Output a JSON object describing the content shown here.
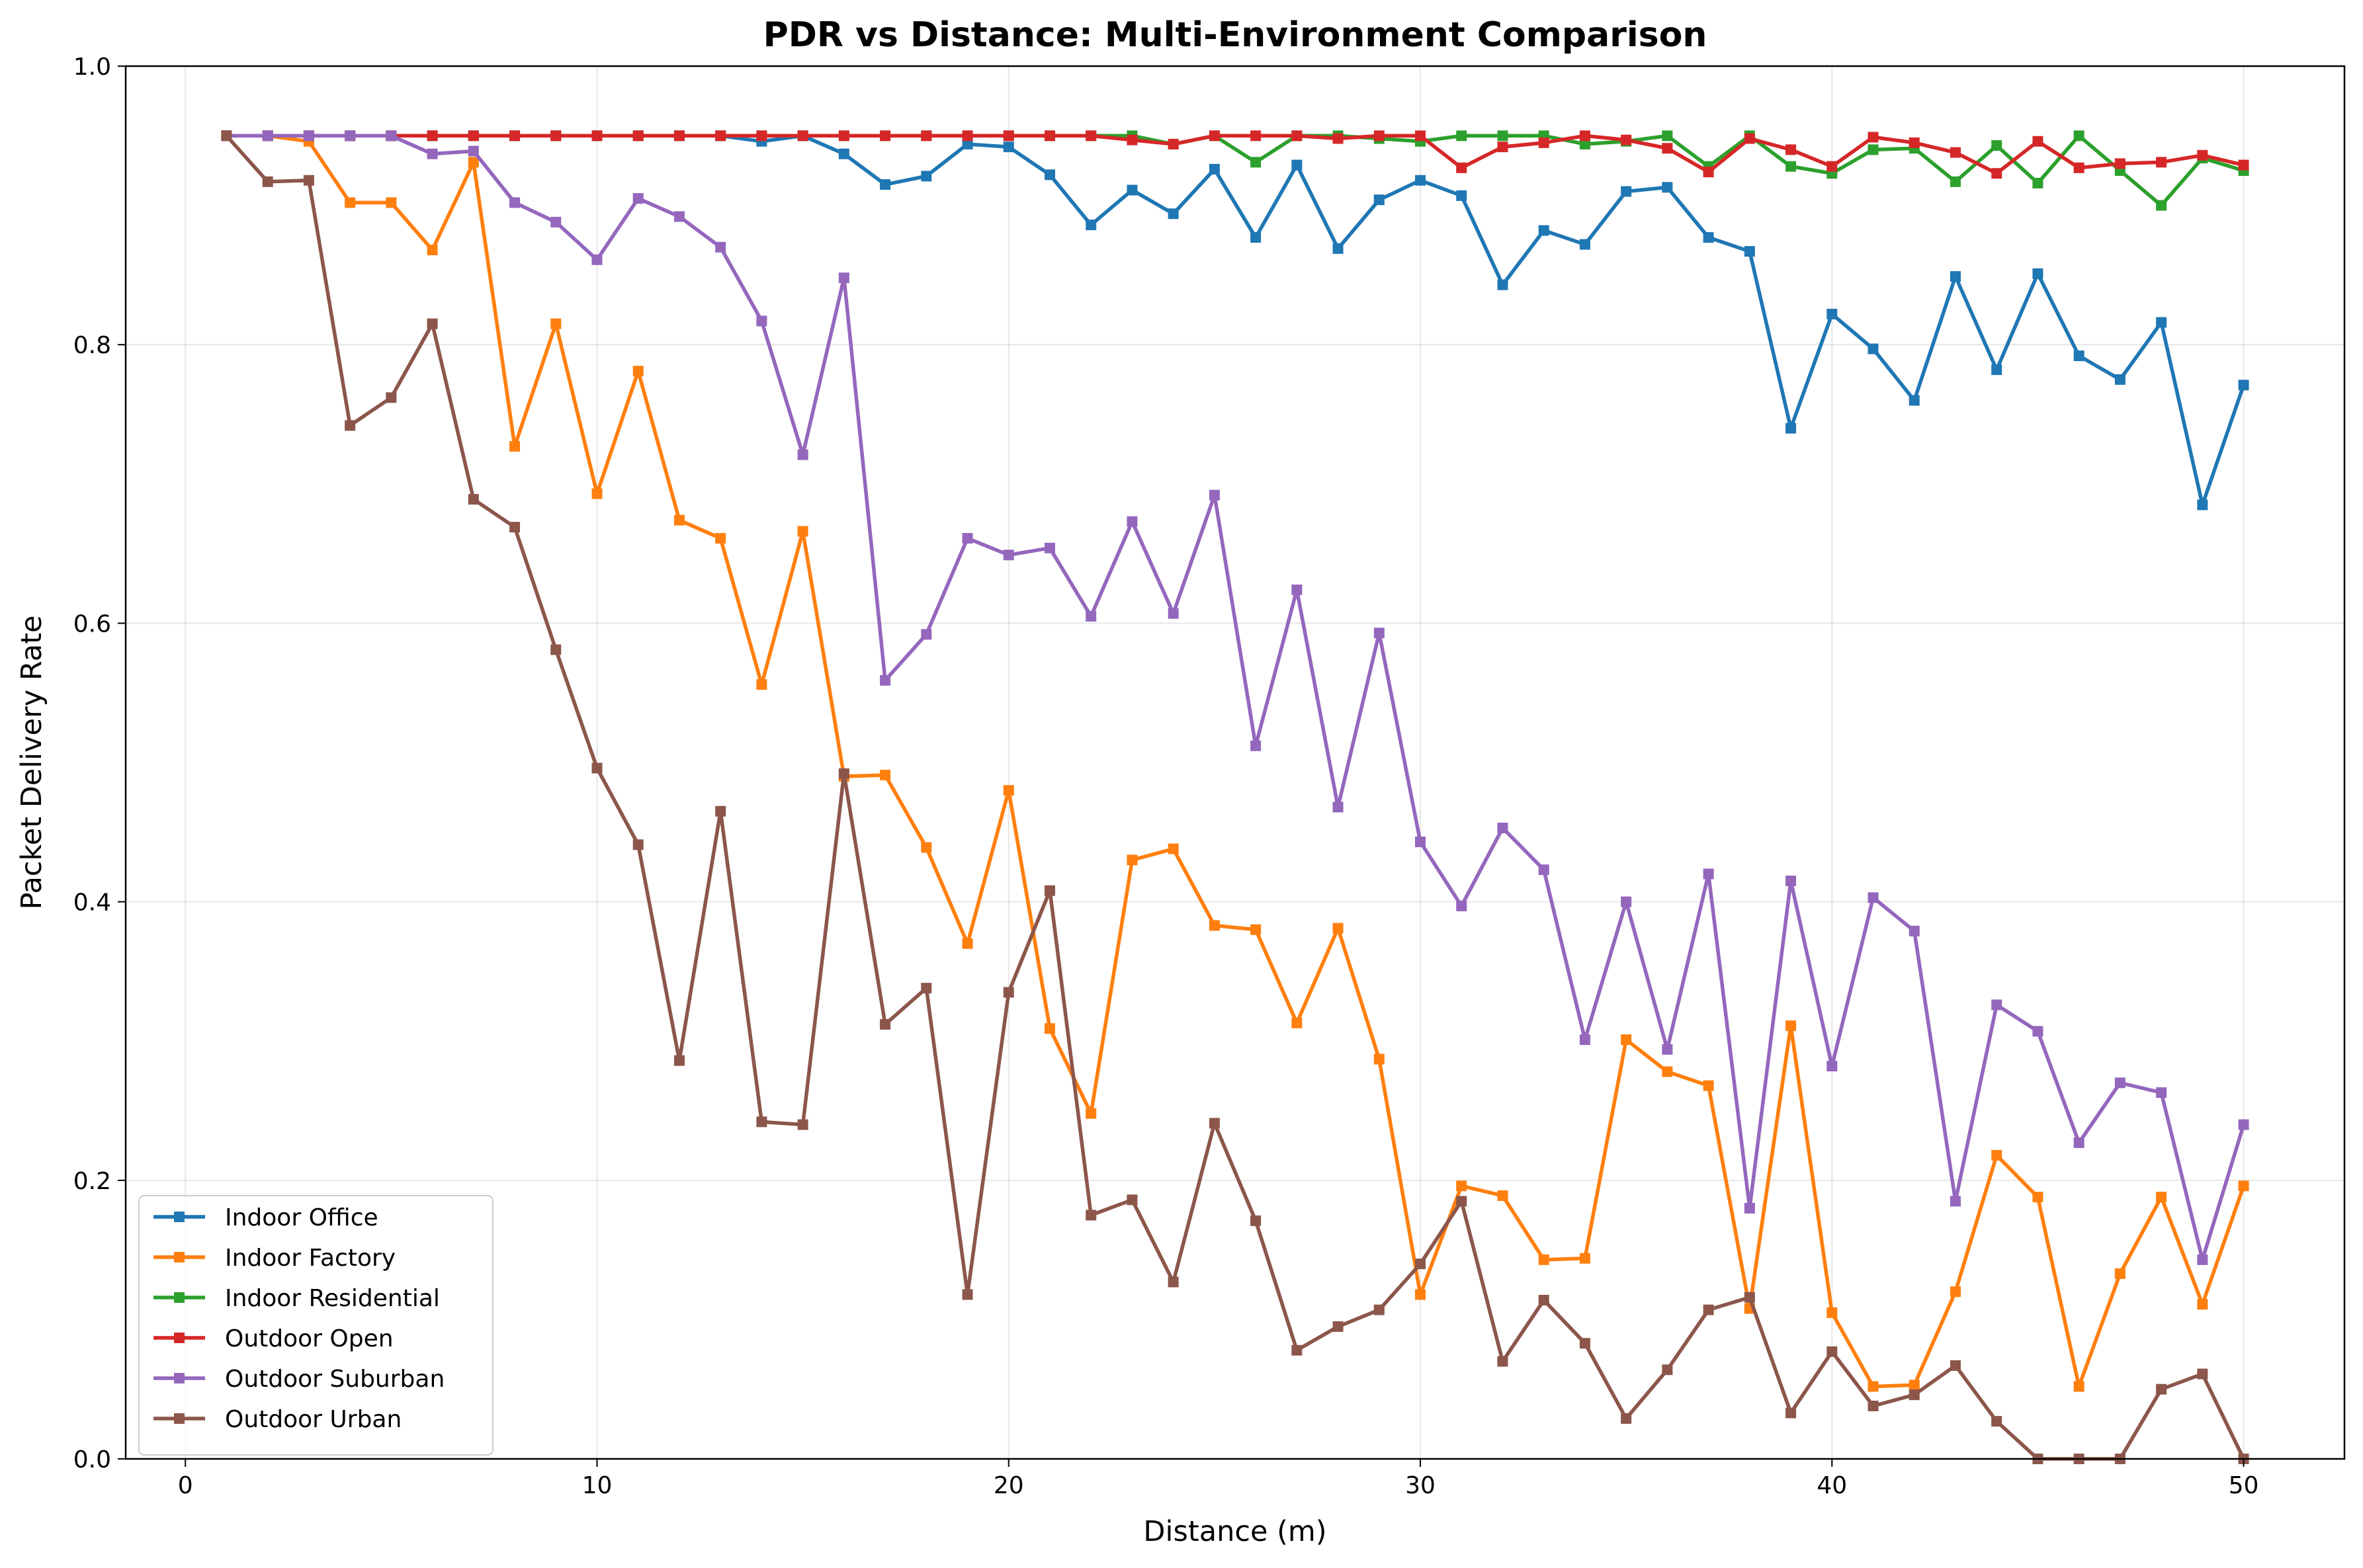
{
  "chart_data": {
    "type": "line",
    "title": "PDR vs Distance: Multi-Environment Comparison",
    "xlabel": "Distance (m)",
    "ylabel": "Packet Delivery Rate",
    "xlim": [
      -1.45,
      52.45
    ],
    "ylim": [
      0,
      1.0
    ],
    "xticks": [
      0,
      10,
      20,
      30,
      40,
      50
    ],
    "yticks": [
      0.0,
      0.2,
      0.4,
      0.6,
      0.8,
      1.0
    ],
    "xtick_labels": [
      "0",
      "10",
      "20",
      "30",
      "40",
      "50"
    ],
    "ytick_labels": [
      "0.0",
      "0.2",
      "0.4",
      "0.6",
      "0.8",
      "1.0"
    ],
    "grid": true,
    "legend_position": "lower-left",
    "marker": "square",
    "x": [
      1,
      2,
      3,
      4,
      5,
      6,
      7,
      8,
      9,
      10,
      11,
      12,
      13,
      14,
      15,
      16,
      17,
      18,
      19,
      20,
      21,
      22,
      23,
      24,
      25,
      26,
      27,
      28,
      29,
      30,
      31,
      32,
      33,
      34,
      35,
      36,
      37,
      38,
      39,
      40,
      41,
      42,
      43,
      44,
      45,
      46,
      47,
      48,
      49,
      50
    ],
    "series": [
      {
        "name": "Indoor Office",
        "color": "#1f77b4",
        "values": [
          0.95,
          0.95,
          0.95,
          0.95,
          0.95,
          0.95,
          0.95,
          0.95,
          0.95,
          0.95,
          0.95,
          0.95,
          0.95,
          0.946,
          0.95,
          0.937,
          0.915,
          0.921,
          0.944,
          0.942,
          0.922,
          0.886,
          0.911,
          0.894,
          0.926,
          0.877,
          0.929,
          0.869,
          0.904,
          0.918,
          0.907,
          0.843,
          0.882,
          0.872,
          0.91,
          0.913,
          0.877,
          0.867,
          0.74,
          0.822,
          0.797,
          0.76,
          0.849,
          0.782,
          0.851,
          0.792,
          0.775,
          0.816,
          0.685,
          0.771
        ]
      },
      {
        "name": "Indoor Factory",
        "color": "#ff7f0e",
        "values": [
          0.95,
          0.95,
          0.946,
          0.902,
          0.902,
          0.868,
          0.931,
          0.727,
          0.815,
          0.693,
          0.781,
          0.674,
          0.661,
          0.556,
          0.666,
          0.49,
          0.491,
          0.439,
          0.37,
          0.48,
          0.309,
          0.248,
          0.43,
          0.438,
          0.383,
          0.38,
          0.313,
          0.381,
          0.287,
          0.118,
          0.196,
          0.189,
          0.143,
          0.144,
          0.301,
          0.278,
          0.268,
          0.108,
          0.311,
          0.105,
          0.052,
          0.053,
          0.12,
          0.218,
          0.188,
          0.052,
          0.133,
          0.188,
          0.111,
          0.196
        ]
      },
      {
        "name": "Indoor Residential",
        "color": "#2ca02c",
        "values": [
          0.95,
          0.95,
          0.95,
          0.95,
          0.95,
          0.95,
          0.95,
          0.95,
          0.95,
          0.95,
          0.95,
          0.95,
          0.95,
          0.95,
          0.95,
          0.95,
          0.95,
          0.95,
          0.95,
          0.95,
          0.95,
          0.95,
          0.95,
          0.944,
          0.95,
          0.931,
          0.95,
          0.95,
          0.948,
          0.946,
          0.95,
          0.95,
          0.95,
          0.944,
          0.946,
          0.95,
          0.928,
          0.95,
          0.928,
          0.923,
          0.94,
          0.941,
          0.917,
          0.943,
          0.916,
          0.95,
          0.925,
          0.9,
          0.934,
          0.925
        ]
      },
      {
        "name": "Outdoor Open",
        "color": "#d62728",
        "values": [
          0.95,
          0.95,
          0.95,
          0.95,
          0.95,
          0.95,
          0.95,
          0.95,
          0.95,
          0.95,
          0.95,
          0.95,
          0.95,
          0.95,
          0.95,
          0.95,
          0.95,
          0.95,
          0.95,
          0.95,
          0.95,
          0.95,
          0.947,
          0.944,
          0.95,
          0.95,
          0.95,
          0.948,
          0.95,
          0.95,
          0.927,
          0.942,
          0.945,
          0.95,
          0.947,
          0.941,
          0.924,
          0.948,
          0.94,
          0.928,
          0.949,
          0.945,
          0.938,
          0.923,
          0.946,
          0.927,
          0.93,
          0.931,
          0.936,
          0.929
        ]
      },
      {
        "name": "Outdoor Suburban",
        "color": "#9467bd",
        "values": [
          0.95,
          0.95,
          0.95,
          0.95,
          0.95,
          0.937,
          0.939,
          0.902,
          0.888,
          0.861,
          0.905,
          0.892,
          0.87,
          0.817,
          0.721,
          0.848,
          0.559,
          0.592,
          0.661,
          0.649,
          0.654,
          0.605,
          0.673,
          0.607,
          0.692,
          0.512,
          0.624,
          0.468,
          0.593,
          0.443,
          0.397,
          0.453,
          0.423,
          0.301,
          0.4,
          0.294,
          0.42,
          0.18,
          0.415,
          0.282,
          0.403,
          0.379,
          0.185,
          0.326,
          0.307,
          0.227,
          0.27,
          0.263,
          0.143,
          0.24
        ]
      },
      {
        "name": "Outdoor Urban",
        "color": "#8c564b",
        "values": [
          0.95,
          0.917,
          0.918,
          0.742,
          0.762,
          0.815,
          0.689,
          0.669,
          0.581,
          0.496,
          0.441,
          0.286,
          0.465,
          0.242,
          0.24,
          0.492,
          0.312,
          0.338,
          0.118,
          0.335,
          0.408,
          0.175,
          0.186,
          0.127,
          0.241,
          0.171,
          0.078,
          0.095,
          0.107,
          0.14,
          0.185,
          0.07,
          0.114,
          0.083,
          0.029,
          0.064,
          0.107,
          0.116,
          0.033,
          0.077,
          0.038,
          0.046,
          0.067,
          0.027,
          0.0,
          0.0,
          0.0,
          0.05,
          0.061,
          0.0
        ]
      }
    ]
  }
}
